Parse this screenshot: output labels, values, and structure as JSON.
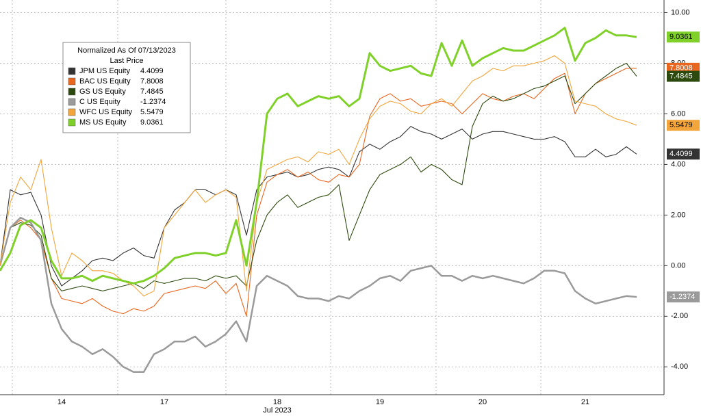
{
  "chart_data": {
    "type": "line",
    "x_label": "Jul 2023",
    "legend_title": "Normalized As Of 07/13/2023",
    "legend_subtitle": "Last Price",
    "categories": [
      null,
      null,
      null,
      null,
      null,
      null,
      "14",
      null,
      null,
      null,
      null,
      null,
      null,
      null,
      null,
      null,
      "17",
      null,
      null,
      null,
      null,
      null,
      null,
      null,
      null,
      null,
      null,
      "18",
      null,
      null,
      null,
      null,
      null,
      null,
      null,
      null,
      null,
      "19",
      null,
      null,
      null,
      null,
      null,
      null,
      null,
      null,
      null,
      "20",
      null,
      null,
      null,
      null,
      null,
      null,
      null,
      null,
      null,
      "21",
      null,
      null,
      null,
      null,
      null
    ],
    "ylim": [
      -5.1,
      10.5
    ],
    "yticks": [
      {
        "value": -4,
        "label": "-4.00"
      },
      {
        "value": -2,
        "label": "-2.00"
      },
      {
        "value": 0,
        "label": "0.00"
      },
      {
        "value": 2,
        "label": "2.00"
      },
      {
        "value": 4,
        "label": "4.00"
      },
      {
        "value": 6,
        "label": "6.00"
      },
      {
        "value": 8,
        "label": "8.00"
      },
      {
        "value": 10,
        "label": "10.00"
      }
    ],
    "grid": true,
    "series": [
      {
        "name": "JPM US Equity",
        "color": "#333333",
        "values": [
          0,
          3.0,
          2.8,
          2.9,
          2.0,
          0.0,
          -0.8,
          -0.5,
          -0.2,
          0.2,
          0.3,
          0.2,
          0.5,
          0.7,
          0.4,
          0.3,
          1.5,
          2.2,
          2.5,
          3.0,
          3.0,
          2.8,
          3.0,
          2.8,
          1.2,
          3.0,
          3.5,
          3.6,
          3.7,
          3.5,
          3.6,
          3.8,
          3.9,
          3.8,
          3.5,
          4.5,
          4.8,
          4.6,
          4.9,
          5.1,
          5.5,
          5.3,
          5.2,
          5.0,
          5.2,
          5.4,
          5.0,
          5.2,
          5.3,
          5.3,
          5.2,
          5.1,
          5.0,
          5.0,
          5.1,
          4.9,
          4.3,
          4.3,
          4.6,
          4.3,
          4.4,
          4.7,
          4.4099
        ]
      },
      {
        "name": "BAC US Equity",
        "color": "#e8661e",
        "values": [
          0,
          1.5,
          1.8,
          1.5,
          1.0,
          -0.5,
          -1.3,
          -1.4,
          -1.5,
          -1.3,
          -1.6,
          -1.8,
          -1.9,
          -1.7,
          -1.8,
          -1.6,
          -1.1,
          -1.0,
          -0.9,
          -0.8,
          -0.9,
          -0.6,
          -1.1,
          -0.7,
          -2.0,
          2.0,
          3.3,
          3.6,
          3.8,
          3.5,
          3.7,
          3.4,
          3.3,
          3.6,
          3.5,
          4.0,
          5.9,
          6.6,
          6.8,
          6.5,
          6.6,
          6.3,
          6.4,
          6.5,
          6.4,
          6.0,
          6.4,
          6.8,
          6.6,
          6.5,
          6.7,
          6.8,
          6.6,
          7.0,
          7.4,
          7.6,
          6.0,
          6.8,
          7.2,
          7.4,
          7.6,
          7.8,
          7.8008
        ]
      },
      {
        "name": "GS US Equity",
        "color": "#2d4a0e",
        "values": [
          0,
          1.5,
          1.7,
          1.6,
          1.2,
          -0.5,
          -1.0,
          -0.9,
          -0.8,
          -0.9,
          -1.0,
          -0.9,
          -0.8,
          -0.7,
          -0.9,
          -0.6,
          -0.7,
          -0.6,
          -0.5,
          -0.5,
          -0.6,
          -0.4,
          -0.5,
          -0.4,
          -0.8,
          1.0,
          2.0,
          2.5,
          2.8,
          2.3,
          2.5,
          2.7,
          2.8,
          3.2,
          1.0,
          2.0,
          3.0,
          3.6,
          3.8,
          4.0,
          4.3,
          3.7,
          4.0,
          3.8,
          3.4,
          3.2,
          5.5,
          6.4,
          6.7,
          6.5,
          6.6,
          6.8,
          7.0,
          7.1,
          7.3,
          7.5,
          6.4,
          6.8,
          7.2,
          7.5,
          7.8,
          8.0,
          7.4845
        ]
      },
      {
        "name": "C US Equity",
        "color": "#9a9a9a",
        "values": [
          0,
          1.5,
          1.9,
          1.7,
          1.0,
          -1.5,
          -2.5,
          -3.0,
          -3.2,
          -3.5,
          -3.3,
          -3.6,
          -4.0,
          -4.2,
          -4.2,
          -3.5,
          -3.3,
          -3.0,
          -3.0,
          -2.8,
          -3.2,
          -3.0,
          -2.7,
          -2.2,
          -3.0,
          -0.8,
          -0.4,
          -0.6,
          -0.8,
          -1.2,
          -1.3,
          -1.3,
          -1.4,
          -1.2,
          -1.3,
          -1.0,
          -0.8,
          -0.5,
          -0.4,
          -0.6,
          -0.2,
          -0.1,
          0.0,
          -0.4,
          -0.4,
          -0.6,
          -0.4,
          -0.5,
          -0.4,
          -0.5,
          -0.6,
          -0.7,
          -0.5,
          -0.2,
          -0.2,
          -0.3,
          -1.0,
          -1.3,
          -1.5,
          -1.4,
          -1.3,
          -1.2,
          -1.2374
        ]
      },
      {
        "name": "WFC US Equity",
        "color": "#f2a53a",
        "values": [
          0,
          2.5,
          3.5,
          3.0,
          4.2,
          1.5,
          -0.4,
          0.5,
          0.2,
          -0.2,
          -0.2,
          -0.3,
          -0.6,
          -0.8,
          -1.2,
          -1.0,
          1.5,
          2.0,
          2.5,
          3.0,
          2.5,
          2.8,
          3.0,
          2.7,
          -1.0,
          2.5,
          3.8,
          4.0,
          4.2,
          4.3,
          4.1,
          4.5,
          4.4,
          4.6,
          4.0,
          5.0,
          5.8,
          6.3,
          6.5,
          6.4,
          6.1,
          6.0,
          6.4,
          6.6,
          6.3,
          6.8,
          7.3,
          7.5,
          7.8,
          7.7,
          7.9,
          7.9,
          8.0,
          8.1,
          8.3,
          8.0,
          6.5,
          6.4,
          6.3,
          6.0,
          5.8,
          5.7,
          5.5479
        ]
      },
      {
        "name": "MS US Equity",
        "color": "#7fd12a",
        "values": [
          -0.2,
          0.5,
          1.6,
          1.8,
          1.5,
          0.2,
          -0.5,
          -0.5,
          -0.4,
          -0.6,
          -0.4,
          -0.5,
          -0.6,
          -0.7,
          -0.6,
          -0.4,
          -0.1,
          0.3,
          0.4,
          0.5,
          0.5,
          0.4,
          0.5,
          1.8,
          0.0,
          2.5,
          6.0,
          6.6,
          6.8,
          6.3,
          6.5,
          6.7,
          6.6,
          6.7,
          6.3,
          6.6,
          8.4,
          7.9,
          7.7,
          7.8,
          7.9,
          7.6,
          7.5,
          8.8,
          7.9,
          8.9,
          7.9,
          8.2,
          8.4,
          8.6,
          8.5,
          8.5,
          8.7,
          8.9,
          9.1,
          9.4,
          8.1,
          8.8,
          9.0,
          9.3,
          9.1,
          9.1,
          9.0361
        ]
      }
    ]
  }
}
